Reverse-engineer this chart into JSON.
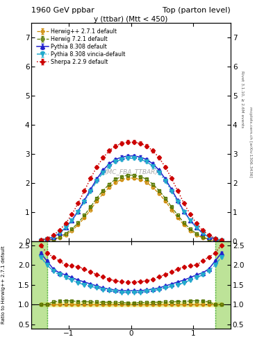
{
  "title_left": "1960 GeV ppbar",
  "title_right": "Top (parton level)",
  "subplot_title": "y (ttbar) (Mtt < 450)",
  "watermark": "(MC_FBA_TTBAR)",
  "right_label_top": "Rivet 3.1.10, ≥ 2.6M events",
  "right_label_bottom": "mcplots.cern.ch [arXiv:1306.3436]",
  "ylabel_ratio": "Ratio to Herwig++ 2.7.1 default",
  "ylim_main": [
    0,
    7.5
  ],
  "ylim_ratio": [
    0.4,
    2.6
  ],
  "yticks_main": [
    0,
    1,
    2,
    3,
    4,
    5,
    6,
    7
  ],
  "yticks_ratio": [
    0.5,
    1.0,
    1.5,
    2.0,
    2.5
  ],
  "xlim": [
    -1.6,
    1.6
  ],
  "xticks": [
    -1,
    0,
    1
  ],
  "x_pts": [
    -1.45,
    -1.35,
    -1.25,
    -1.15,
    -1.05,
    -0.95,
    -0.85,
    -0.75,
    -0.65,
    -0.55,
    -0.45,
    -0.35,
    -0.25,
    -0.15,
    -0.05,
    0.05,
    0.15,
    0.25,
    0.35,
    0.45,
    0.55,
    0.65,
    0.75,
    0.85,
    0.95,
    1.05,
    1.15,
    1.25,
    1.35,
    1.45
  ],
  "herwig_pp": [
    0.01,
    0.02,
    0.05,
    0.11,
    0.21,
    0.36,
    0.56,
    0.8,
    1.08,
    1.38,
    1.63,
    1.85,
    2.02,
    2.12,
    2.17,
    2.17,
    2.12,
    2.02,
    1.85,
    1.63,
    1.38,
    1.08,
    0.8,
    0.56,
    0.36,
    0.21,
    0.11,
    0.05,
    0.02,
    0.01
  ],
  "herwig72": [
    0.01,
    0.03,
    0.07,
    0.14,
    0.26,
    0.42,
    0.63,
    0.89,
    1.18,
    1.48,
    1.74,
    1.96,
    2.13,
    2.22,
    2.27,
    2.27,
    2.22,
    2.13,
    1.96,
    1.74,
    1.48,
    1.18,
    0.89,
    0.63,
    0.42,
    0.26,
    0.14,
    0.07,
    0.03,
    0.01
  ],
  "pythia83": [
    0.03,
    0.07,
    0.14,
    0.27,
    0.47,
    0.72,
    1.03,
    1.4,
    1.78,
    2.14,
    2.44,
    2.66,
    2.81,
    2.89,
    2.93,
    2.93,
    2.89,
    2.81,
    2.66,
    2.44,
    2.14,
    1.78,
    1.4,
    1.03,
    0.72,
    0.47,
    0.27,
    0.14,
    0.07,
    0.03
  ],
  "pythia83v": [
    0.03,
    0.07,
    0.14,
    0.27,
    0.47,
    0.71,
    1.0,
    1.35,
    1.72,
    2.07,
    2.36,
    2.58,
    2.73,
    2.81,
    2.85,
    2.85,
    2.81,
    2.73,
    2.58,
    2.36,
    2.07,
    1.72,
    1.35,
    1.0,
    0.71,
    0.47,
    0.27,
    0.14,
    0.07,
    0.03
  ],
  "sherpa": [
    0.04,
    0.1,
    0.2,
    0.37,
    0.61,
    0.92,
    1.3,
    1.73,
    2.16,
    2.55,
    2.87,
    3.11,
    3.27,
    3.36,
    3.41,
    3.41,
    3.36,
    3.27,
    3.11,
    2.87,
    2.55,
    2.16,
    1.73,
    1.3,
    0.92,
    0.61,
    0.37,
    0.2,
    0.1,
    0.04
  ],
  "ratio_herwig72": [
    1.0,
    1.0,
    1.07,
    1.09,
    1.1,
    1.09,
    1.08,
    1.08,
    1.07,
    1.07,
    1.06,
    1.06,
    1.05,
    1.05,
    1.04,
    1.04,
    1.05,
    1.05,
    1.06,
    1.06,
    1.07,
    1.07,
    1.08,
    1.08,
    1.09,
    1.1,
    1.09,
    1.07,
    1.0,
    1.0
  ],
  "ratio_pythia83": [
    2.3,
    2.1,
    1.9,
    1.8,
    1.75,
    1.68,
    1.62,
    1.57,
    1.52,
    1.47,
    1.42,
    1.39,
    1.37,
    1.35,
    1.35,
    1.35,
    1.35,
    1.37,
    1.39,
    1.42,
    1.47,
    1.52,
    1.57,
    1.62,
    1.68,
    1.75,
    1.8,
    1.9,
    2.1,
    2.3
  ],
  "ratio_pythia83v": [
    2.2,
    2.0,
    1.85,
    1.75,
    1.68,
    1.62,
    1.55,
    1.5,
    1.46,
    1.42,
    1.38,
    1.35,
    1.33,
    1.31,
    1.31,
    1.31,
    1.31,
    1.33,
    1.35,
    1.38,
    1.42,
    1.46,
    1.5,
    1.55,
    1.62,
    1.68,
    1.75,
    1.85,
    2.0,
    2.2
  ],
  "ratio_sherpa": [
    2.5,
    2.3,
    2.2,
    2.1,
    2.0,
    1.98,
    1.95,
    1.9,
    1.82,
    1.76,
    1.7,
    1.64,
    1.6,
    1.58,
    1.57,
    1.57,
    1.58,
    1.6,
    1.64,
    1.7,
    1.76,
    1.82,
    1.9,
    1.95,
    1.98,
    2.0,
    2.1,
    2.2,
    2.3,
    2.5
  ],
  "colors": {
    "herwig_pp": "#cc8800",
    "herwig72": "#557700",
    "pythia83": "#2222cc",
    "pythia83v": "#22aacc",
    "sherpa": "#cc0000"
  },
  "ref_band_color": "#eeee88",
  "herwig72_band_color": "#88cc44",
  "vline_x": [
    -1.35,
    1.35
  ],
  "vline_color": "#44aa44"
}
